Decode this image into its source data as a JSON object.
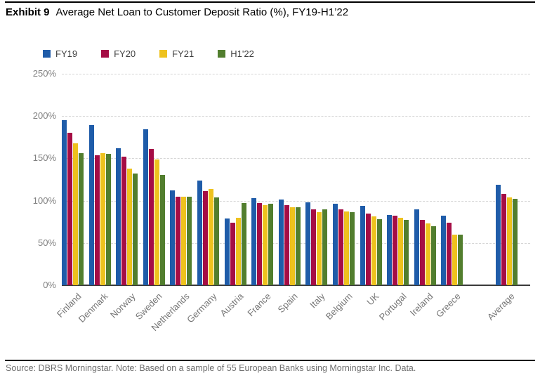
{
  "title": {
    "exhibit": "Exhibit 9",
    "text": "Average Net Loan to Customer Deposit Ratio (%), FY19-H1’22"
  },
  "source_note": "Source: DBRS Morningstar. Note: Based on a sample of 55 European Banks using Morningstar Inc. Data.",
  "colors": {
    "fy19_blue": "#1F5CA9",
    "fy20_red": "#A50D45",
    "fy21_yellow": "#EEC21E",
    "h122_green": "#527E2E",
    "gridline": "#d5d5d5",
    "baseline": "#3a3a3a",
    "axis_text": "#808080",
    "top_rule": "#000000"
  },
  "chart_data": {
    "type": "bar",
    "title": "Average Net Loan to Customer Deposit Ratio (%), FY19-H1'22",
    "categories": [
      "Finland",
      "Denmark",
      "Norway",
      "Sweden",
      "Netherlands",
      "Germany",
      "Austria",
      "France",
      "Spain",
      "Italy",
      "Belgium",
      "UK",
      "Portugal",
      "Ireland",
      "Greece",
      "Average"
    ],
    "series": [
      {
        "name": "FY19",
        "color": "#1F5CA9",
        "values": [
          195,
          189,
          162,
          184,
          112,
          124,
          79,
          103,
          101,
          98,
          96,
          94,
          83,
          90,
          82,
          119
        ]
      },
      {
        "name": "FY20",
        "color": "#A50D45",
        "values": [
          180,
          154,
          152,
          161,
          105,
          111,
          74,
          97,
          95,
          90,
          90,
          85,
          82,
          77,
          74,
          108
        ]
      },
      {
        "name": "FY21",
        "color": "#EEC21E",
        "values": [
          168,
          156,
          138,
          149,
          105,
          114,
          80,
          95,
          92,
          86,
          87,
          81,
          80,
          73,
          60,
          104
        ]
      },
      {
        "name": "H1'22",
        "color": "#527E2E",
        "values": [
          156,
          155,
          132,
          130,
          105,
          104,
          97,
          96,
          92,
          90,
          86,
          78,
          77,
          70,
          60,
          102
        ]
      }
    ],
    "xlabel": "",
    "ylabel": "",
    "ylim": [
      0,
      250
    ],
    "ytick_labels": [
      "0%",
      "50%",
      "100%",
      "150%",
      "200%",
      "250%"
    ],
    "ytick_values": [
      0,
      50,
      100,
      150,
      200,
      250
    ],
    "grid": "horizontal-dashed",
    "legend_position": "top-left",
    "note": "Average group separated from country groups by one empty slot"
  }
}
